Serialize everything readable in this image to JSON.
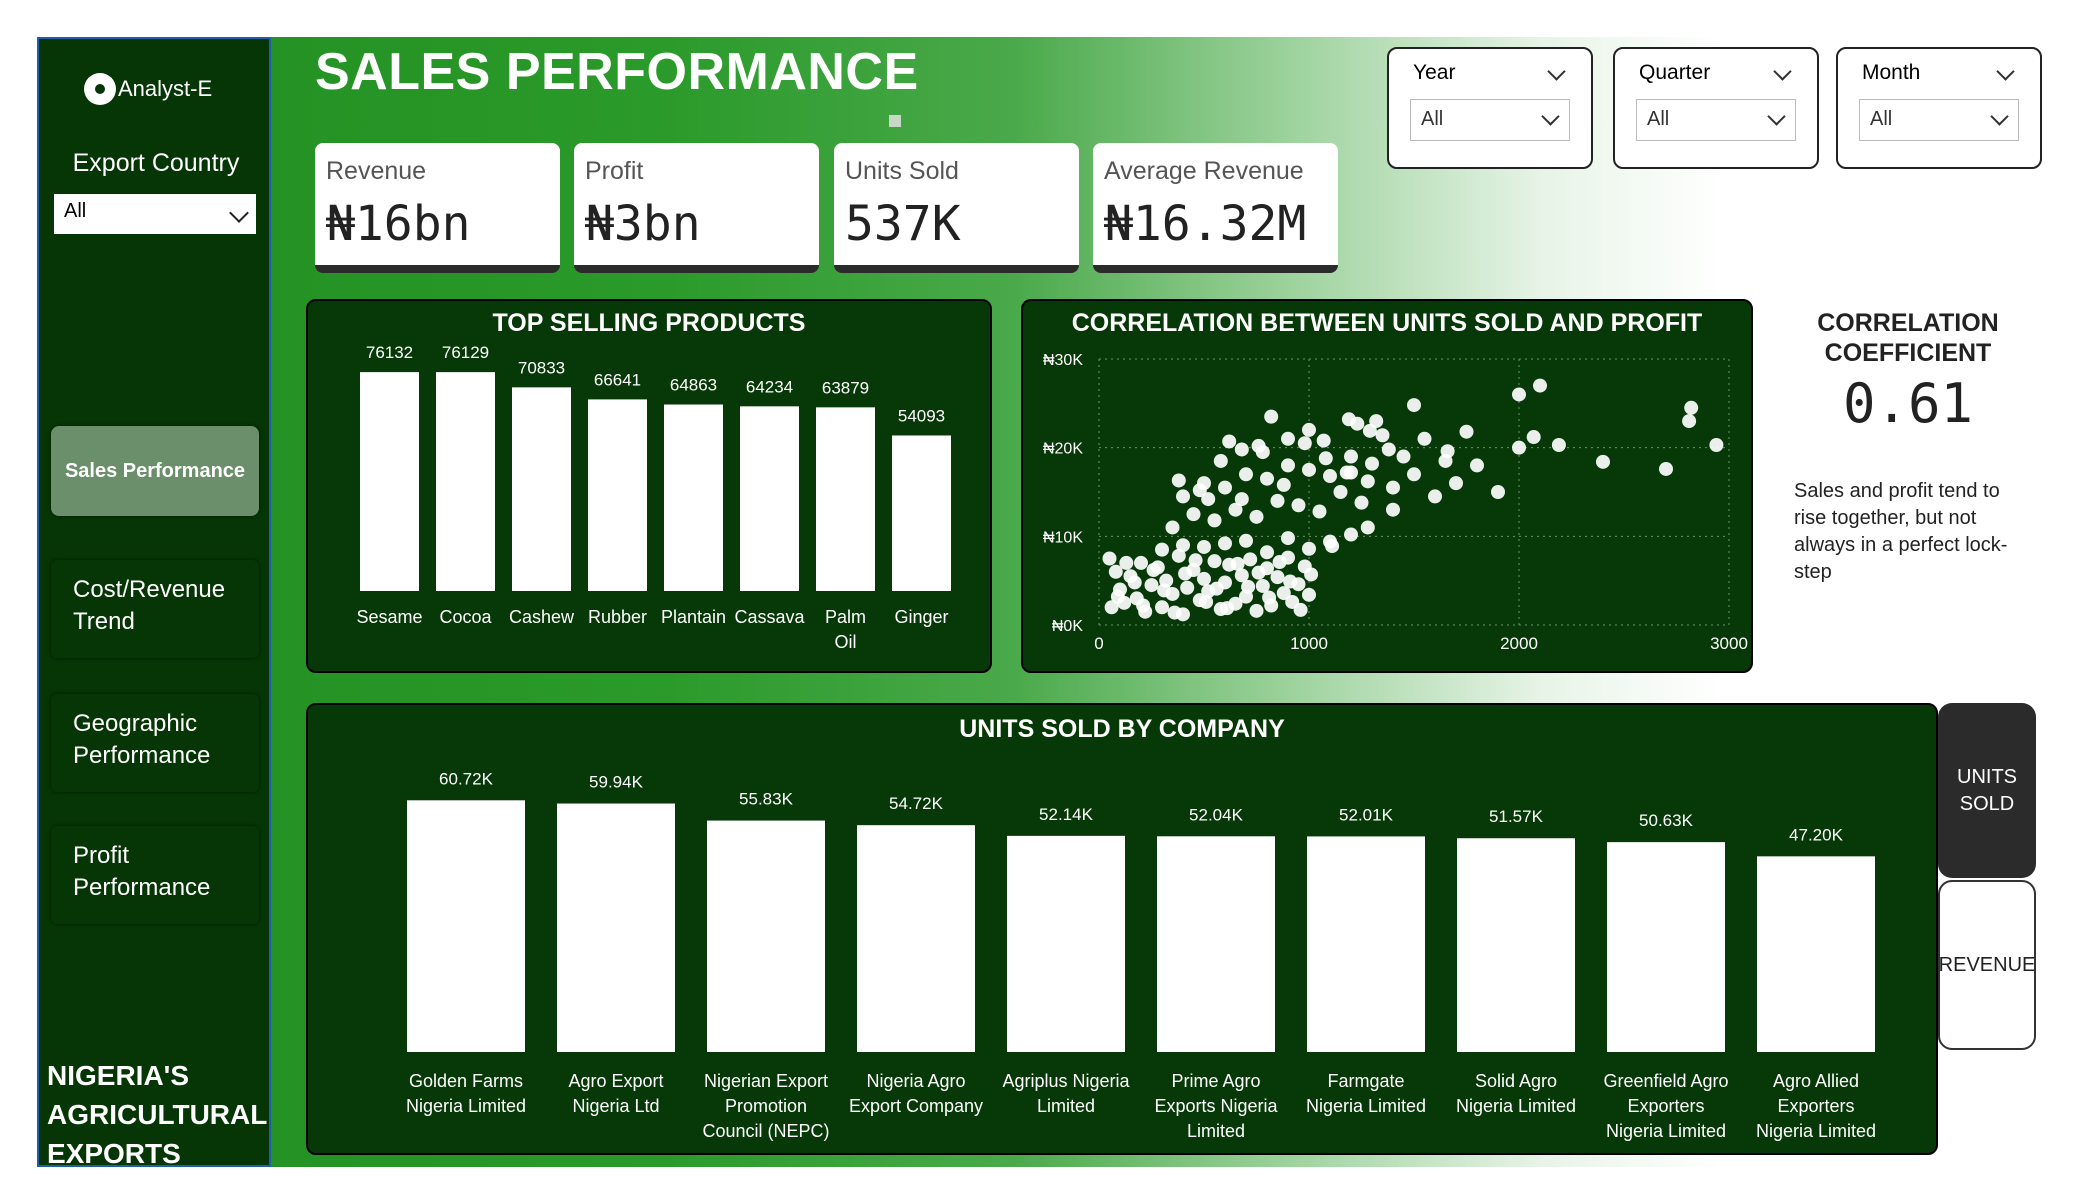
{
  "app": {
    "logo_text": "Analyst-E",
    "page_title": "SALES PERFORMANCE",
    "brand_lines": [
      "NIGERIA'S",
      "AGRICULTURAL",
      "EXPORTS"
    ]
  },
  "sidebar": {
    "export_country_label": "Export Country",
    "export_country_value": "All",
    "nav": [
      {
        "label": "Sales Performance",
        "active": true
      },
      {
        "label": "Cost/Revenue Trend",
        "active": false
      },
      {
        "label": "Geographic Performance",
        "active": false
      },
      {
        "label": "Profit Performance",
        "active": false
      }
    ]
  },
  "kpis": [
    {
      "label": "Revenue",
      "value": "₦16bn"
    },
    {
      "label": "Profit",
      "value": "₦3bn"
    },
    {
      "label": "Units Sold",
      "value": "537K"
    },
    {
      "label": "Average Revenue",
      "value": "₦16.32M"
    }
  ],
  "slicers": [
    {
      "title": "Year",
      "value": "All"
    },
    {
      "title": "Quarter",
      "value": "All"
    },
    {
      "title": "Month",
      "value": "All"
    }
  ],
  "correlation": {
    "title_line1": "CORRELATION",
    "title_line2": "COEFFICIENT",
    "value": "0.61",
    "note": "Sales and profit tend to rise together, but not always in a perfect lock-step"
  },
  "toggles": {
    "units_sold": "UNITS SOLD",
    "revenue": "REVENUE",
    "active": "units_sold"
  },
  "colors": {
    "dark_green": "#063606",
    "panel_green": "#073807",
    "accent_green": "#249224",
    "bar": "#ffffff"
  },
  "chart_data": [
    {
      "type": "bar",
      "title": "TOP SELLING PRODUCTS",
      "categories": [
        "Sesame",
        "Cocoa",
        "Cashew",
        "Rubber",
        "Plantain",
        "Cassava",
        "Palm Oil",
        "Ginger"
      ],
      "values": [
        76132,
        76129,
        70833,
        66641,
        64863,
        64234,
        63879,
        54093
      ],
      "value_labels": [
        "76132",
        "76129",
        "70833",
        "66641",
        "64863",
        "64234",
        "63879",
        "54093"
      ],
      "ylim": [
        0,
        80000
      ]
    },
    {
      "type": "scatter",
      "title": "CORRELATION BETWEEN UNITS SOLD AND PROFIT",
      "xlim": [
        0,
        3000
      ],
      "ylim": [
        0,
        30000
      ],
      "x_ticks": [
        "0",
        "1000",
        "2000",
        "3000"
      ],
      "y_ticks": [
        "₦0K",
        "₦10K",
        "₦20K",
        "₦30K"
      ],
      "grid": true,
      "points": [
        [
          50,
          7500
        ],
        [
          80,
          6000
        ],
        [
          100,
          4000
        ],
        [
          120,
          2500
        ],
        [
          150,
          5500
        ],
        [
          180,
          3000
        ],
        [
          200,
          7000
        ],
        [
          220,
          1500
        ],
        [
          250,
          4500
        ],
        [
          280,
          6500
        ],
        [
          300,
          2000
        ],
        [
          320,
          5000
        ],
        [
          350,
          3500
        ],
        [
          380,
          7800
        ],
        [
          400,
          1200
        ],
        [
          420,
          4200
        ],
        [
          450,
          6200
        ],
        [
          480,
          2800
        ],
        [
          500,
          5200
        ],
        [
          520,
          3800
        ],
        [
          550,
          7200
        ],
        [
          580,
          1800
        ],
        [
          600,
          4800
        ],
        [
          620,
          6800
        ],
        [
          650,
          2400
        ],
        [
          680,
          5600
        ],
        [
          700,
          3200
        ],
        [
          720,
          7400
        ],
        [
          750,
          1600
        ],
        [
          780,
          4400
        ],
        [
          800,
          6400
        ],
        [
          820,
          2200
        ],
        [
          850,
          5400
        ],
        [
          880,
          3600
        ],
        [
          900,
          7600
        ],
        [
          920,
          2600
        ],
        [
          950,
          4600
        ],
        [
          980,
          6600
        ],
        [
          1000,
          3400
        ],
        [
          60,
          2000
        ],
        [
          90,
          3200
        ],
        [
          130,
          7000
        ],
        [
          170,
          4800
        ],
        [
          210,
          2200
        ],
        [
          260,
          6200
        ],
        [
          310,
          3900
        ],
        [
          360,
          1400
        ],
        [
          410,
          5800
        ],
        [
          460,
          7300
        ],
        [
          510,
          2600
        ],
        [
          560,
          4100
        ],
        [
          610,
          1900
        ],
        [
          660,
          6900
        ],
        [
          710,
          4300
        ],
        [
          760,
          5900
        ],
        [
          810,
          3100
        ],
        [
          860,
          7100
        ],
        [
          910,
          4900
        ],
        [
          960,
          1700
        ],
        [
          1010,
          5700
        ],
        [
          300,
          8500
        ],
        [
          400,
          9000
        ],
        [
          500,
          8800
        ],
        [
          600,
          9200
        ],
        [
          700,
          9500
        ],
        [
          800,
          8200
        ],
        [
          900,
          9800
        ],
        [
          1000,
          8600
        ],
        [
          1100,
          9400
        ],
        [
          1200,
          10200
        ],
        [
          350,
          11000
        ],
        [
          450,
          12500
        ],
        [
          550,
          11800
        ],
        [
          650,
          13000
        ],
        [
          750,
          12200
        ],
        [
          850,
          14000
        ],
        [
          950,
          13500
        ],
        [
          1050,
          12800
        ],
        [
          1150,
          15000
        ],
        [
          1250,
          13800
        ],
        [
          400,
          14500
        ],
        [
          500,
          16000
        ],
        [
          600,
          15500
        ],
        [
          700,
          17000
        ],
        [
          800,
          16500
        ],
        [
          900,
          18000
        ],
        [
          1000,
          17500
        ],
        [
          1100,
          16800
        ],
        [
          1200,
          19000
        ],
        [
          1300,
          18200
        ],
        [
          480,
          15200
        ],
        [
          580,
          18500
        ],
        [
          680,
          14200
        ],
        [
          780,
          19500
        ],
        [
          880,
          15800
        ],
        [
          980,
          20500
        ],
        [
          1080,
          18800
        ],
        [
          1180,
          17200
        ],
        [
          1280,
          16200
        ],
        [
          1380,
          19800
        ],
        [
          1400,
          15500
        ],
        [
          1500,
          17000
        ],
        [
          1600,
          14500
        ],
        [
          1700,
          16000
        ],
        [
          1800,
          18000
        ],
        [
          1900,
          15000
        ],
        [
          2000,
          20000
        ],
        [
          1450,
          19000
        ],
        [
          1550,
          21000
        ],
        [
          1650,
          18500
        ],
        [
          820,
          23500
        ],
        [
          1000,
          22000
        ],
        [
          1230,
          22700
        ],
        [
          1290,
          21900
        ],
        [
          1660,
          19600
        ],
        [
          1750,
          21800
        ],
        [
          2000,
          26000
        ],
        [
          2100,
          27000
        ],
        [
          2070,
          21200
        ],
        [
          2190,
          20300
        ],
        [
          2400,
          18400
        ],
        [
          2700,
          17600
        ],
        [
          2810,
          23000
        ],
        [
          2820,
          24500
        ],
        [
          2940,
          20300
        ],
        [
          1110,
          8900
        ],
        [
          1280,
          11000
        ],
        [
          1400,
          13000
        ],
        [
          1200,
          17200
        ],
        [
          1350,
          21400
        ],
        [
          900,
          21000
        ],
        [
          760,
          20200
        ],
        [
          1070,
          20800
        ],
        [
          1320,
          23000
        ],
        [
          1190,
          23200
        ],
        [
          680,
          19800
        ],
        [
          520,
          14200
        ],
        [
          380,
          16300
        ],
        [
          620,
          20700
        ],
        [
          1500,
          24800
        ]
      ]
    },
    {
      "type": "bar",
      "title": "UNITS SOLD BY COMPANY",
      "categories": [
        "Golden Farms Nigeria Limited",
        "Agro Export Nigeria Ltd",
        "Nigerian Export Promotion Council (NEPC)",
        "Nigeria Agro Export Company",
        "Agriplus Nigeria Limited",
        "Prime Agro Exports Nigeria Limited",
        "Farmgate Nigeria Limited",
        "Solid Agro Nigeria Limited",
        "Greenfield Agro Exporters Nigeria Limited",
        "Agro Allied Exporters Nigeria Limited"
      ],
      "category_lines": [
        [
          "Golden Farms",
          "Nigeria Limited"
        ],
        [
          "Agro Export",
          "Nigeria Ltd"
        ],
        [
          "Nigerian Export",
          "Promotion",
          "Council (NEPC)"
        ],
        [
          "Nigeria Agro",
          "Export Company"
        ],
        [
          "Agriplus Nigeria",
          "Limited"
        ],
        [
          "Prime Agro",
          "Exports Nigeria",
          "Limited"
        ],
        [
          "Farmgate",
          "Nigeria Limited"
        ],
        [
          "Solid Agro",
          "Nigeria Limited"
        ],
        [
          "Greenfield Agro",
          "Exporters",
          "Nigeria Limited"
        ],
        [
          "Agro Allied",
          "Exporters",
          "Nigeria Limited"
        ]
      ],
      "values": [
        60720,
        59940,
        55830,
        54720,
        52140,
        52040,
        52010,
        51570,
        50630,
        47200
      ],
      "value_labels": [
        "60.72K",
        "59.94K",
        "55.83K",
        "54.72K",
        "52.14K",
        "52.04K",
        "52.01K",
        "51.57K",
        "50.63K",
        "47.20K"
      ],
      "ylim": [
        0,
        62000
      ]
    }
  ]
}
